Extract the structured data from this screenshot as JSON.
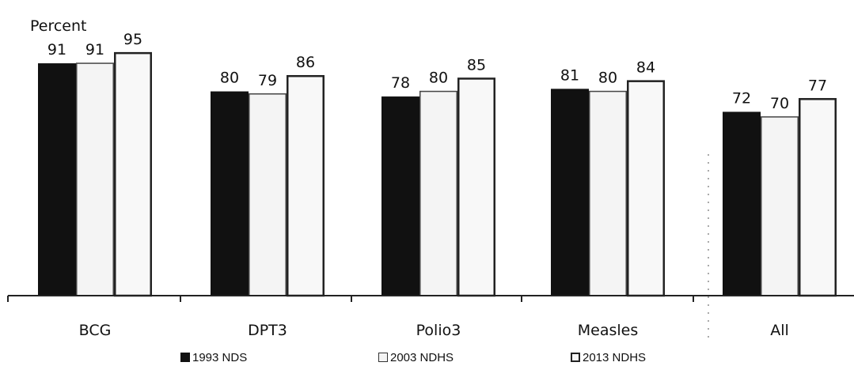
{
  "chart_data": {
    "type": "bar",
    "ylabel": "Percent",
    "categories": [
      "BCG",
      "DPT3",
      "Polio3",
      "Measles",
      "All"
    ],
    "series": [
      {
        "name": "1993 NDS",
        "values": [
          91,
          80,
          78,
          81,
          72
        ],
        "color": "#111111"
      },
      {
        "name": "2003 NDHS",
        "values": [
          91,
          79,
          80,
          80,
          70
        ],
        "color": "#f4f4f4"
      },
      {
        "name": "2013 NDHS",
        "values": [
          95,
          86,
          85,
          84,
          77
        ],
        "color": "#f8f8f8"
      }
    ],
    "ylim": [
      0,
      100
    ],
    "grid": false,
    "legend_position": "bottom"
  }
}
